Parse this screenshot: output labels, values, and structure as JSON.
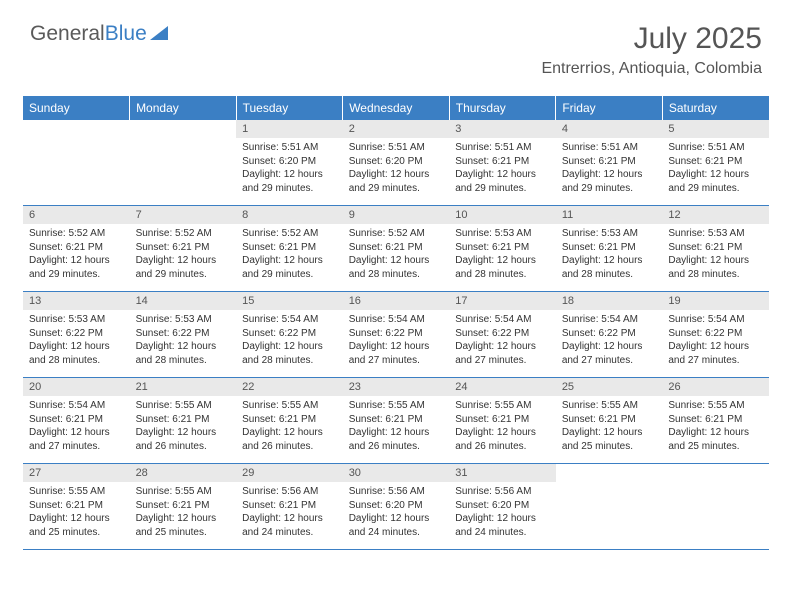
{
  "brand": {
    "word1": "General",
    "word2": "Blue"
  },
  "title": "July 2025",
  "location": "Entrerrios, Antioquia, Colombia",
  "colors": {
    "accent": "#3b7fc4",
    "daynum_bg": "#e9e9e9",
    "text": "#333333",
    "heading": "#555555"
  },
  "weekdays": [
    "Sunday",
    "Monday",
    "Tuesday",
    "Wednesday",
    "Thursday",
    "Friday",
    "Saturday"
  ],
  "weeks": [
    [
      null,
      null,
      {
        "n": "1",
        "sr": "Sunrise: 5:51 AM",
        "ss": "Sunset: 6:20 PM",
        "d1": "Daylight: 12 hours",
        "d2": "and 29 minutes."
      },
      {
        "n": "2",
        "sr": "Sunrise: 5:51 AM",
        "ss": "Sunset: 6:20 PM",
        "d1": "Daylight: 12 hours",
        "d2": "and 29 minutes."
      },
      {
        "n": "3",
        "sr": "Sunrise: 5:51 AM",
        "ss": "Sunset: 6:21 PM",
        "d1": "Daylight: 12 hours",
        "d2": "and 29 minutes."
      },
      {
        "n": "4",
        "sr": "Sunrise: 5:51 AM",
        "ss": "Sunset: 6:21 PM",
        "d1": "Daylight: 12 hours",
        "d2": "and 29 minutes."
      },
      {
        "n": "5",
        "sr": "Sunrise: 5:51 AM",
        "ss": "Sunset: 6:21 PM",
        "d1": "Daylight: 12 hours",
        "d2": "and 29 minutes."
      }
    ],
    [
      {
        "n": "6",
        "sr": "Sunrise: 5:52 AM",
        "ss": "Sunset: 6:21 PM",
        "d1": "Daylight: 12 hours",
        "d2": "and 29 minutes."
      },
      {
        "n": "7",
        "sr": "Sunrise: 5:52 AM",
        "ss": "Sunset: 6:21 PM",
        "d1": "Daylight: 12 hours",
        "d2": "and 29 minutes."
      },
      {
        "n": "8",
        "sr": "Sunrise: 5:52 AM",
        "ss": "Sunset: 6:21 PM",
        "d1": "Daylight: 12 hours",
        "d2": "and 29 minutes."
      },
      {
        "n": "9",
        "sr": "Sunrise: 5:52 AM",
        "ss": "Sunset: 6:21 PM",
        "d1": "Daylight: 12 hours",
        "d2": "and 28 minutes."
      },
      {
        "n": "10",
        "sr": "Sunrise: 5:53 AM",
        "ss": "Sunset: 6:21 PM",
        "d1": "Daylight: 12 hours",
        "d2": "and 28 minutes."
      },
      {
        "n": "11",
        "sr": "Sunrise: 5:53 AM",
        "ss": "Sunset: 6:21 PM",
        "d1": "Daylight: 12 hours",
        "d2": "and 28 minutes."
      },
      {
        "n": "12",
        "sr": "Sunrise: 5:53 AM",
        "ss": "Sunset: 6:21 PM",
        "d1": "Daylight: 12 hours",
        "d2": "and 28 minutes."
      }
    ],
    [
      {
        "n": "13",
        "sr": "Sunrise: 5:53 AM",
        "ss": "Sunset: 6:22 PM",
        "d1": "Daylight: 12 hours",
        "d2": "and 28 minutes."
      },
      {
        "n": "14",
        "sr": "Sunrise: 5:53 AM",
        "ss": "Sunset: 6:22 PM",
        "d1": "Daylight: 12 hours",
        "d2": "and 28 minutes."
      },
      {
        "n": "15",
        "sr": "Sunrise: 5:54 AM",
        "ss": "Sunset: 6:22 PM",
        "d1": "Daylight: 12 hours",
        "d2": "and 28 minutes."
      },
      {
        "n": "16",
        "sr": "Sunrise: 5:54 AM",
        "ss": "Sunset: 6:22 PM",
        "d1": "Daylight: 12 hours",
        "d2": "and 27 minutes."
      },
      {
        "n": "17",
        "sr": "Sunrise: 5:54 AM",
        "ss": "Sunset: 6:22 PM",
        "d1": "Daylight: 12 hours",
        "d2": "and 27 minutes."
      },
      {
        "n": "18",
        "sr": "Sunrise: 5:54 AM",
        "ss": "Sunset: 6:22 PM",
        "d1": "Daylight: 12 hours",
        "d2": "and 27 minutes."
      },
      {
        "n": "19",
        "sr": "Sunrise: 5:54 AM",
        "ss": "Sunset: 6:22 PM",
        "d1": "Daylight: 12 hours",
        "d2": "and 27 minutes."
      }
    ],
    [
      {
        "n": "20",
        "sr": "Sunrise: 5:54 AM",
        "ss": "Sunset: 6:21 PM",
        "d1": "Daylight: 12 hours",
        "d2": "and 27 minutes."
      },
      {
        "n": "21",
        "sr": "Sunrise: 5:55 AM",
        "ss": "Sunset: 6:21 PM",
        "d1": "Daylight: 12 hours",
        "d2": "and 26 minutes."
      },
      {
        "n": "22",
        "sr": "Sunrise: 5:55 AM",
        "ss": "Sunset: 6:21 PM",
        "d1": "Daylight: 12 hours",
        "d2": "and 26 minutes."
      },
      {
        "n": "23",
        "sr": "Sunrise: 5:55 AM",
        "ss": "Sunset: 6:21 PM",
        "d1": "Daylight: 12 hours",
        "d2": "and 26 minutes."
      },
      {
        "n": "24",
        "sr": "Sunrise: 5:55 AM",
        "ss": "Sunset: 6:21 PM",
        "d1": "Daylight: 12 hours",
        "d2": "and 26 minutes."
      },
      {
        "n": "25",
        "sr": "Sunrise: 5:55 AM",
        "ss": "Sunset: 6:21 PM",
        "d1": "Daylight: 12 hours",
        "d2": "and 25 minutes."
      },
      {
        "n": "26",
        "sr": "Sunrise: 5:55 AM",
        "ss": "Sunset: 6:21 PM",
        "d1": "Daylight: 12 hours",
        "d2": "and 25 minutes."
      }
    ],
    [
      {
        "n": "27",
        "sr": "Sunrise: 5:55 AM",
        "ss": "Sunset: 6:21 PM",
        "d1": "Daylight: 12 hours",
        "d2": "and 25 minutes."
      },
      {
        "n": "28",
        "sr": "Sunrise: 5:55 AM",
        "ss": "Sunset: 6:21 PM",
        "d1": "Daylight: 12 hours",
        "d2": "and 25 minutes."
      },
      {
        "n": "29",
        "sr": "Sunrise: 5:56 AM",
        "ss": "Sunset: 6:21 PM",
        "d1": "Daylight: 12 hours",
        "d2": "and 24 minutes."
      },
      {
        "n": "30",
        "sr": "Sunrise: 5:56 AM",
        "ss": "Sunset: 6:20 PM",
        "d1": "Daylight: 12 hours",
        "d2": "and 24 minutes."
      },
      {
        "n": "31",
        "sr": "Sunrise: 5:56 AM",
        "ss": "Sunset: 6:20 PM",
        "d1": "Daylight: 12 hours",
        "d2": "and 24 minutes."
      },
      null,
      null
    ]
  ]
}
